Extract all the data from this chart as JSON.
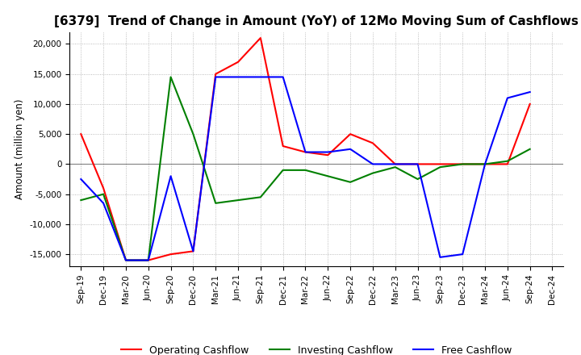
{
  "title": "[6379]  Trend of Change in Amount (YoY) of 12Mo Moving Sum of Cashflows",
  "ylabel": "Amount (million yen)",
  "ylim": [
    -17000,
    22000
  ],
  "yticks": [
    -15000,
    -10000,
    -5000,
    0,
    5000,
    10000,
    15000,
    20000
  ],
  "x_labels": [
    "Sep-19",
    "Dec-19",
    "Mar-20",
    "Jun-20",
    "Sep-20",
    "Dec-20",
    "Mar-21",
    "Jun-21",
    "Sep-21",
    "Dec-21",
    "Mar-22",
    "Jun-22",
    "Sep-22",
    "Dec-22",
    "Mar-23",
    "Jun-23",
    "Sep-23",
    "Dec-23",
    "Mar-24",
    "Jun-24",
    "Sep-24",
    "Dec-24"
  ],
  "operating": [
    5000,
    -4000,
    -16000,
    -16000,
    -15000,
    -14500,
    15000,
    17000,
    21000,
    3000,
    2000,
    1500,
    5000,
    3500,
    0,
    0,
    0,
    0,
    0,
    0,
    10000,
    null
  ],
  "investing": [
    -6000,
    -5000,
    -16000,
    -16000,
    14500,
    5000,
    -6500,
    -6000,
    -5500,
    -1000,
    -1000,
    -2000,
    -3000,
    -1500,
    -500,
    -2500,
    -500,
    0,
    0,
    500,
    2500,
    null
  ],
  "free": [
    -2500,
    -6500,
    -16000,
    -16000,
    -2000,
    -14500,
    14500,
    14500,
    14500,
    14500,
    2000,
    2000,
    2500,
    0,
    0,
    0,
    -15500,
    -15000,
    0,
    11000,
    12000,
    null
  ],
  "operating_color": "#ff0000",
  "investing_color": "#008000",
  "free_color": "#0000ff",
  "background_color": "#ffffff",
  "grid_color": "#aaaaaa",
  "title_fontsize": 11,
  "legend_fontsize": 9
}
